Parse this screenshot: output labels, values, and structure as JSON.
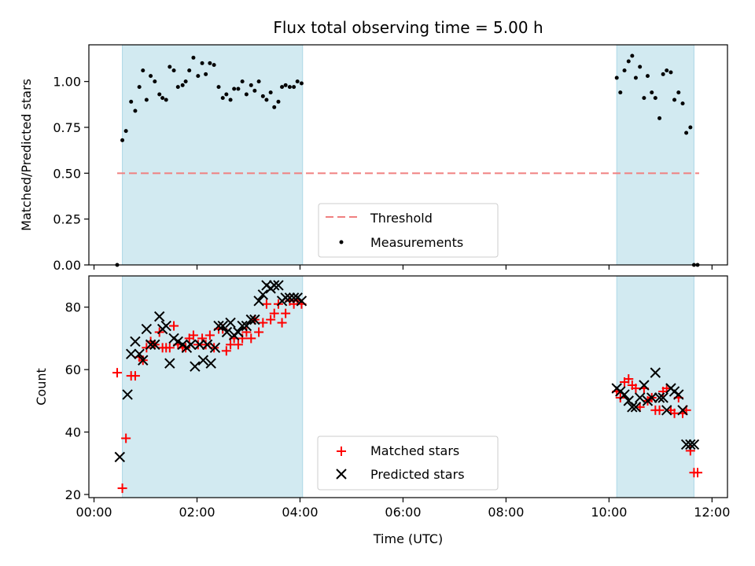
{
  "chart_data": {
    "title": "Flux total observing time = 5.00 h",
    "x_unit": "hours (UTC)",
    "xlabel": "Time (UTC)",
    "xlim": [
      -0.1,
      12.3
    ],
    "xticks": [
      {
        "value": 0,
        "label": "00:00"
      },
      {
        "value": 2,
        "label": "02:00"
      },
      {
        "value": 4,
        "label": "04:00"
      },
      {
        "value": 6,
        "label": "06:00"
      },
      {
        "value": 8,
        "label": "08:00"
      },
      {
        "value": 10,
        "label": "10:00"
      },
      {
        "value": 12,
        "label": "12:00"
      }
    ],
    "observing_windows": [
      [
        0.55,
        4.05
      ],
      [
        10.15,
        11.65
      ]
    ],
    "window_color": "#add8e6",
    "top": {
      "type": "scatter",
      "ylabel": "Matched/Predicted stars",
      "ylim": [
        0,
        1.2
      ],
      "yticks": [
        {
          "value": 0,
          "label": "0.00"
        },
        {
          "value": 0.25,
          "label": "0.25"
        },
        {
          "value": 0.5,
          "label": "0.50"
        },
        {
          "value": 0.75,
          "label": "0.75"
        },
        {
          "value": 1.0,
          "label": "1.00"
        }
      ],
      "threshold": {
        "name": "Threshold",
        "value": 0.5,
        "x_range": [
          0.45,
          11.75
        ],
        "color": "#f08080"
      },
      "series": [
        {
          "name": "Measurements",
          "color": "#000000",
          "x": [
            0.45,
            0.55,
            0.62,
            0.72,
            0.8,
            0.88,
            0.95,
            1.02,
            1.1,
            1.18,
            1.27,
            1.33,
            1.4,
            1.47,
            1.55,
            1.63,
            1.72,
            1.78,
            1.85,
            1.93,
            2.02,
            2.1,
            2.17,
            2.25,
            2.33,
            2.42,
            2.5,
            2.57,
            2.65,
            2.72,
            2.8,
            2.88,
            2.96,
            3.05,
            3.12,
            3.2,
            3.28,
            3.35,
            3.43,
            3.5,
            3.58,
            3.65,
            3.72,
            3.8,
            3.88,
            3.95,
            4.03,
            10.15,
            10.22,
            10.3,
            10.38,
            10.45,
            10.52,
            10.6,
            10.68,
            10.75,
            10.83,
            10.9,
            10.98,
            11.05,
            11.12,
            11.2,
            11.27,
            11.35,
            11.43,
            11.5,
            11.58,
            11.65,
            11.72
          ],
          "y": [
            0.0,
            0.68,
            0.73,
            0.89,
            0.84,
            0.97,
            1.06,
            0.9,
            1.03,
            1.0,
            0.93,
            0.91,
            0.9,
            1.08,
            1.06,
            0.97,
            0.98,
            1.0,
            1.06,
            1.13,
            1.03,
            1.1,
            1.04,
            1.1,
            1.09,
            0.97,
            0.91,
            0.93,
            0.9,
            0.96,
            0.96,
            1.0,
            0.93,
            0.98,
            0.95,
            1.0,
            0.92,
            0.9,
            0.94,
            0.86,
            0.89,
            0.97,
            0.98,
            0.97,
            0.97,
            1.0,
            0.99,
            1.02,
            0.94,
            1.06,
            1.11,
            1.14,
            1.02,
            1.08,
            0.91,
            1.03,
            0.94,
            0.91,
            0.8,
            1.04,
            1.06,
            1.05,
            0.9,
            0.94,
            0.88,
            0.72,
            0.75,
            0.0,
            0.0
          ]
        }
      ],
      "legend": {
        "placement": "lower-center"
      }
    },
    "bottom": {
      "type": "scatter",
      "ylabel": "Count",
      "ylim": [
        19,
        90
      ],
      "yticks": [
        {
          "value": 20,
          "label": "20"
        },
        {
          "value": 40,
          "label": "40"
        },
        {
          "value": 60,
          "label": "60"
        },
        {
          "value": 80,
          "label": "80"
        }
      ],
      "series": [
        {
          "name": "Matched stars",
          "marker": "plus",
          "color": "#ff0000",
          "x": [
            0.45,
            0.55,
            0.62,
            0.72,
            0.8,
            0.88,
            0.95,
            1.02,
            1.1,
            1.18,
            1.27,
            1.33,
            1.4,
            1.47,
            1.55,
            1.63,
            1.72,
            1.78,
            1.85,
            1.93,
            2.02,
            2.1,
            2.17,
            2.25,
            2.33,
            2.42,
            2.5,
            2.57,
            2.65,
            2.72,
            2.8,
            2.88,
            2.96,
            3.05,
            3.12,
            3.2,
            3.28,
            3.35,
            3.43,
            3.5,
            3.58,
            3.65,
            3.72,
            3.8,
            3.88,
            3.95,
            4.03,
            10.15,
            10.22,
            10.3,
            10.38,
            10.45,
            10.52,
            10.6,
            10.68,
            10.75,
            10.83,
            10.9,
            10.98,
            11.05,
            11.12,
            11.2,
            11.27,
            11.35,
            11.43,
            11.5,
            11.58,
            11.65,
            11.72
          ],
          "y": [
            59,
            22,
            38,
            58,
            58,
            64,
            63,
            67,
            69,
            68,
            72,
            67,
            67,
            67,
            74,
            68,
            67,
            67,
            70,
            71,
            68,
            70,
            68,
            71,
            67,
            73,
            73,
            66,
            68,
            70,
            68,
            70,
            72,
            70,
            76,
            72,
            75,
            81,
            76,
            78,
            81,
            75,
            78,
            82,
            81,
            82,
            81,
            53,
            51,
            56,
            57,
            55,
            54,
            48,
            54,
            50,
            51,
            47,
            47,
            53,
            54,
            47,
            46,
            51,
            46,
            47,
            34,
            27,
            27
          ]
        },
        {
          "name": "Predicted stars",
          "marker": "x",
          "color": "#000000",
          "x": [
            0.5,
            0.65,
            0.72,
            0.8,
            0.88,
            0.95,
            1.02,
            1.1,
            1.18,
            1.27,
            1.33,
            1.4,
            1.47,
            1.55,
            1.63,
            1.72,
            1.8,
            1.88,
            1.96,
            2.05,
            2.12,
            2.2,
            2.27,
            2.35,
            2.42,
            2.5,
            2.58,
            2.65,
            2.72,
            2.8,
            2.88,
            2.96,
            3.05,
            3.12,
            3.2,
            3.28,
            3.35,
            3.43,
            3.5,
            3.58,
            3.65,
            3.72,
            3.8,
            3.88,
            3.95,
            4.03,
            10.15,
            10.22,
            10.3,
            10.38,
            10.45,
            10.52,
            10.6,
            10.68,
            10.75,
            10.83,
            10.9,
            10.98,
            11.05,
            11.12,
            11.2,
            11.27,
            11.35,
            11.43,
            11.5,
            11.58,
            11.65
          ],
          "y": [
            32,
            52,
            65,
            69,
            65,
            63,
            73,
            68,
            68,
            77,
            73,
            74,
            62,
            70,
            69,
            68,
            67,
            68,
            61,
            68,
            63,
            68,
            62,
            67,
            74,
            74,
            72,
            75,
            71,
            72,
            74,
            74,
            76,
            76,
            82,
            84,
            87,
            86,
            87,
            87,
            82,
            83,
            83,
            83,
            83,
            82,
            54,
            53,
            52,
            50,
            48,
            48,
            51,
            55,
            50,
            51,
            59,
            51,
            51,
            47,
            54,
            53,
            52,
            47,
            36,
            36,
            36
          ]
        }
      ],
      "legend": {
        "placement": "lower-center"
      }
    }
  }
}
